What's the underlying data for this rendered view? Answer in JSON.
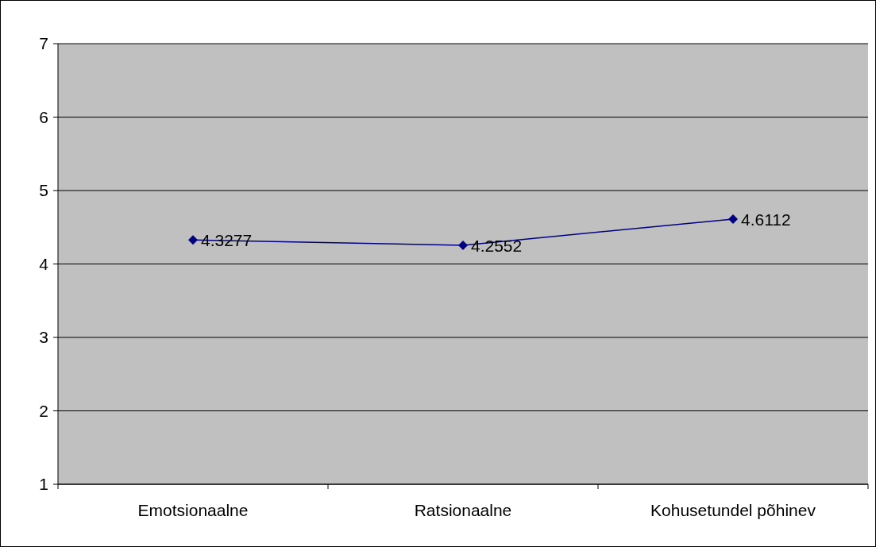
{
  "chart_data": {
    "type": "line",
    "categories": [
      "Emotsionaalne",
      "Ratsionaalne",
      "Kohusetundel põhinev"
    ],
    "series": [
      {
        "color": "#000080",
        "values": [
          4.3277,
          4.2552,
          4.6112
        ]
      }
    ],
    "ylim": [
      1,
      7
    ],
    "yticks": [
      1,
      2,
      3,
      4,
      5,
      6,
      7
    ],
    "grid": "y",
    "marker": "diamond",
    "data_labels": true
  }
}
